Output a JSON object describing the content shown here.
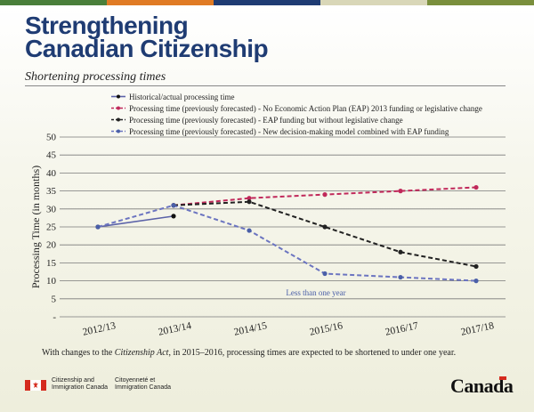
{
  "header": {
    "title_line1": "Strengthening",
    "title_line2": "Canadian Citizenship",
    "subtitle": "Shortening processing times"
  },
  "top_bar_colors": [
    "#4a7f3a",
    "#e07b24",
    "#1f3c73",
    "#d9d7b8",
    "#7a8f3c"
  ],
  "chart_data": {
    "type": "line",
    "title": "",
    "xlabel": "",
    "ylabel": "Processing Time (in months)",
    "ylim": [
      0,
      50
    ],
    "yticks": [
      "-",
      "5",
      "10",
      "15",
      "20",
      "25",
      "30",
      "35",
      "40",
      "45",
      "50"
    ],
    "categories": [
      "2012/13",
      "2013/14",
      "2014/15",
      "2015/16",
      "2016/17",
      "2017/18"
    ],
    "grid": true,
    "legend_position": "top",
    "series": [
      {
        "name": "Historical/actual processing time",
        "color": "#5b62a8",
        "dash": "solid",
        "marker_color": "#111111",
        "points": [
          {
            "x": "2012/13",
            "y": 25
          },
          {
            "x": "2013/14",
            "y": 28
          }
        ]
      },
      {
        "name": "Processing time (previously forecasted) - No Economic Action Plan (EAP) 2013 funding or legislative change",
        "color": "#c0285a",
        "dash": "dashed",
        "marker_color": "#c0285a",
        "points": [
          {
            "x": "2013/14",
            "y": 31
          },
          {
            "x": "2014/15",
            "y": 33
          },
          {
            "x": "2015/16",
            "y": 34
          },
          {
            "x": "2016/17",
            "y": 35
          },
          {
            "x": "2017/18",
            "y": 36
          }
        ]
      },
      {
        "name": "Processing time (previously forecasted) - EAP funding but without legislative change",
        "color": "#222222",
        "dash": "dashed",
        "marker_color": "#222222",
        "points": [
          {
            "x": "2013/14",
            "y": 31
          },
          {
            "x": "2014/15",
            "y": 32
          },
          {
            "x": "2015/16",
            "y": 25
          },
          {
            "x": "2016/17",
            "y": 18
          },
          {
            "x": "2017/18",
            "y": 14
          }
        ]
      },
      {
        "name": "Processing time (previously forecasted) - New decision-making model combined with EAP funding",
        "color": "#6b74c0",
        "dash": "dashed",
        "marker_color": "#4a5fa8",
        "points": [
          {
            "x": "2012/13",
            "y": 25
          },
          {
            "x": "2013/14",
            "y": 31
          },
          {
            "x": "2014/15",
            "y": 24
          },
          {
            "x": "2015/16",
            "y": 12
          },
          {
            "x": "2016/17",
            "y": 11
          },
          {
            "x": "2017/18",
            "y": 10
          }
        ]
      }
    ],
    "annotations": [
      {
        "text": "Less than one year",
        "color": "#4a5fa8"
      }
    ]
  },
  "footnote": {
    "before": "With changes to the ",
    "italic": "Citizenship Act",
    "after": ", in 2015–2016, processing times are expected to be shortened to under one year."
  },
  "footer": {
    "dept_en_1": "Citizenship and",
    "dept_en_2": "Immigration Canada",
    "dept_fr_1": "Citoyenneté et",
    "dept_fr_2": "Immigration Canada",
    "wordmark": "Canada"
  }
}
